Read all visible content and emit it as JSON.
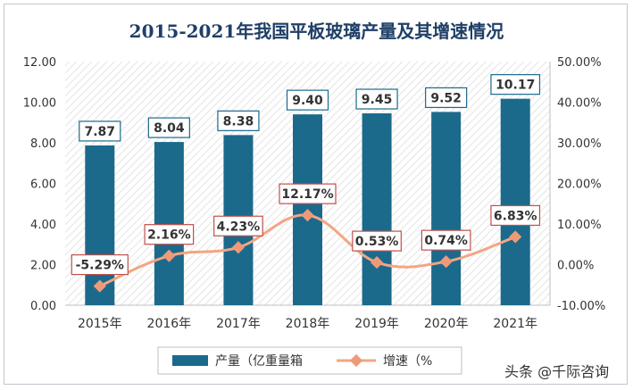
{
  "chart_data": {
    "type": "bar+line",
    "title": "2015-2021年我国平板玻璃产量及其增速情况",
    "categories": [
      "2015年",
      "2016年",
      "2017年",
      "2018年",
      "2019年",
      "2020年",
      "2021年"
    ],
    "series": [
      {
        "name": "产量（亿重量箱",
        "type": "bar",
        "axis": "left",
        "values": [
          7.87,
          8.04,
          8.38,
          9.4,
          9.45,
          9.52,
          10.17
        ],
        "labels": [
          "7.87",
          "8.04",
          "8.38",
          "9.40",
          "9.45",
          "9.52",
          "10.17"
        ]
      },
      {
        "name": "增速（%",
        "type": "line",
        "axis": "right",
        "values": [
          -5.29,
          2.16,
          4.23,
          12.17,
          0.53,
          0.74,
          6.83
        ],
        "labels": [
          "-5.29%",
          "2.16%",
          "4.23%",
          "12.17%",
          "0.53%",
          "0.74%",
          "6.83%"
        ]
      }
    ],
    "y_left": {
      "min": 0,
      "max": 12,
      "step": 2,
      "tick_labels": [
        "0.00",
        "2.00",
        "4.00",
        "6.00",
        "8.00",
        "10.00",
        "12.00"
      ]
    },
    "y_right": {
      "min": -10,
      "max": 50,
      "step": 10,
      "tick_labels": [
        "-10.00%",
        "0.00%",
        "10.00%",
        "20.00%",
        "30.00%",
        "40.00%",
        "50.00%"
      ]
    },
    "legend_position": "bottom",
    "colors": {
      "bar": "#1b6a8c",
      "line": "#f4a582",
      "line_marker": "#ee9a78",
      "label_border": "#1b6a8c",
      "label_border_line": "#c0504d"
    }
  },
  "source": "头条 @千际咨询"
}
